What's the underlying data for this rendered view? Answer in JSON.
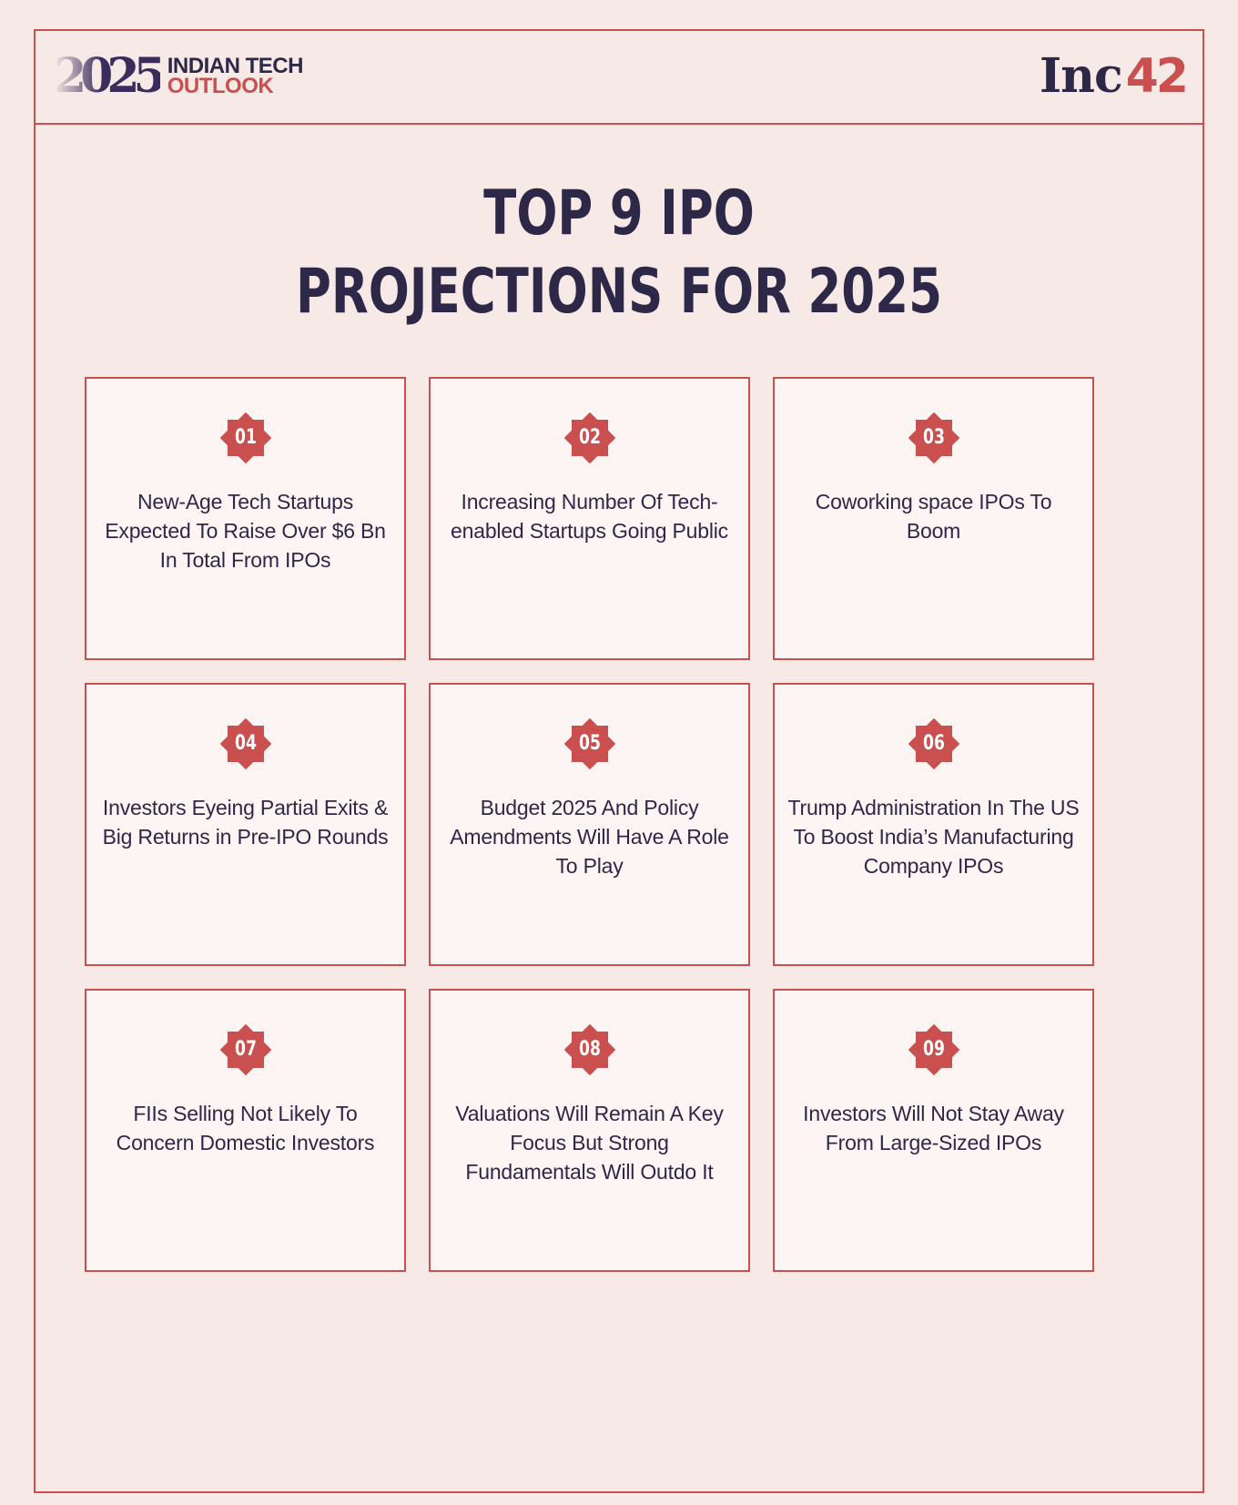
{
  "header": {
    "brand_year": "2025",
    "brand_line1": "INDIAN TECH",
    "brand_line2": "OUTLOOK",
    "logo_word": "Inc",
    "logo_number": "42"
  },
  "title": {
    "line1": "TOP 9 IPO",
    "line2": "PROJECTIONS FOR 2025"
  },
  "colors": {
    "background": "#f7eae6",
    "accent": "#c9504f",
    "text": "#2e2848",
    "card": "#fdf5f3"
  },
  "items": [
    {
      "number": "01",
      "text": "New-Age Tech Startups Expected To Raise Over $6 Bn In Total From IPOs"
    },
    {
      "number": "02",
      "text": "Increasing Number Of Tech-enabled Startups Going Public"
    },
    {
      "number": "03",
      "text": "Coworking space IPOs To Boom"
    },
    {
      "number": "04",
      "text": "Investors Eyeing Partial Exits & Big Returns in Pre-IPO Rounds"
    },
    {
      "number": "05",
      "text": "Budget 2025 And Policy Amendments Will Have A Role To Play"
    },
    {
      "number": "06",
      "text": "Trump Administration In The US To Boost India’s Manufacturing Company IPOs"
    },
    {
      "number": "07",
      "text": "FIIs Selling Not Likely To Concern Domestic Investors"
    },
    {
      "number": "08",
      "text": "Valuations Will Remain A Key Focus But Strong Fundamentals Will Outdo It"
    },
    {
      "number": "09",
      "text": "Investors Will Not Stay Away From Large-Sized IPOs"
    }
  ],
  "icons": {
    "badge": "eight-point-star-badge-icon"
  }
}
